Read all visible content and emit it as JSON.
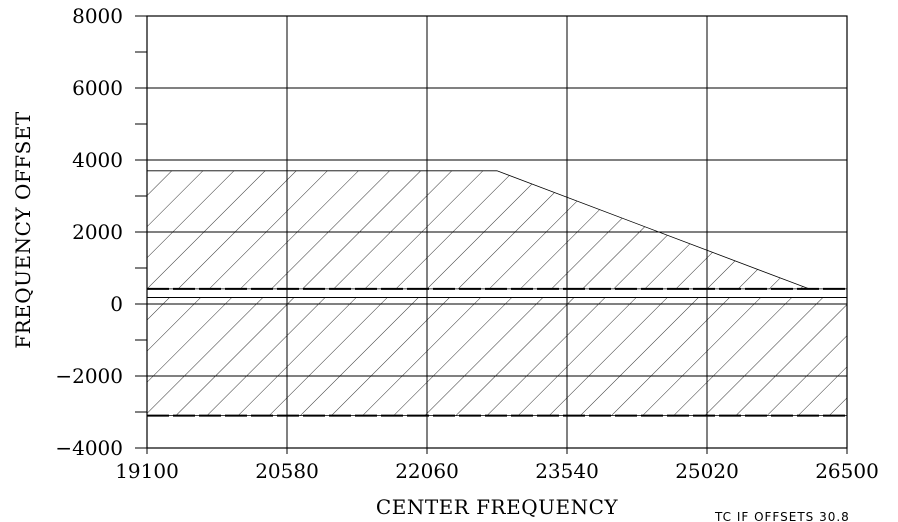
{
  "chart_data": {
    "type": "area",
    "xlabel": "CENTER FREQUENCY",
    "ylabel": "FREQUENCY OFFSET",
    "xlim": [
      19100,
      26500
    ],
    "ylim": [
      -4000,
      8000
    ],
    "x_ticks": [
      19100,
      20580,
      22060,
      23540,
      25020,
      26500
    ],
    "y_ticks": [
      8000,
      6000,
      4000,
      2000,
      0,
      -2000,
      -4000
    ],
    "x_tick_labels": [
      "19100",
      "20580",
      "22060",
      "23540",
      "25020",
      "26500"
    ],
    "y_tick_labels": [
      "8000",
      "6000",
      "4000",
      "2000",
      "0",
      "−2000",
      "−4000"
    ],
    "grid": true,
    "regions": [
      {
        "fill": "hatched",
        "boundary": [
          [
            19100,
            3700
          ],
          [
            22800,
            3700
          ],
          [
            26100,
            420
          ],
          [
            26500,
            420
          ],
          [
            26500,
            420
          ],
          [
            19100,
            420
          ]
        ]
      },
      {
        "fill": "hatched",
        "boundary": [
          [
            19100,
            180
          ],
          [
            26500,
            180
          ],
          [
            26500,
            -3100
          ],
          [
            19100,
            -3100
          ]
        ]
      }
    ],
    "horizontal_lines": [
      {
        "y": 420,
        "style": "dashed-heavy"
      },
      {
        "y": 180,
        "style": "solid"
      },
      {
        "y": -3100,
        "style": "dashed-heavy"
      }
    ]
  },
  "footnote": "TC IF OFFSETS  30.8"
}
